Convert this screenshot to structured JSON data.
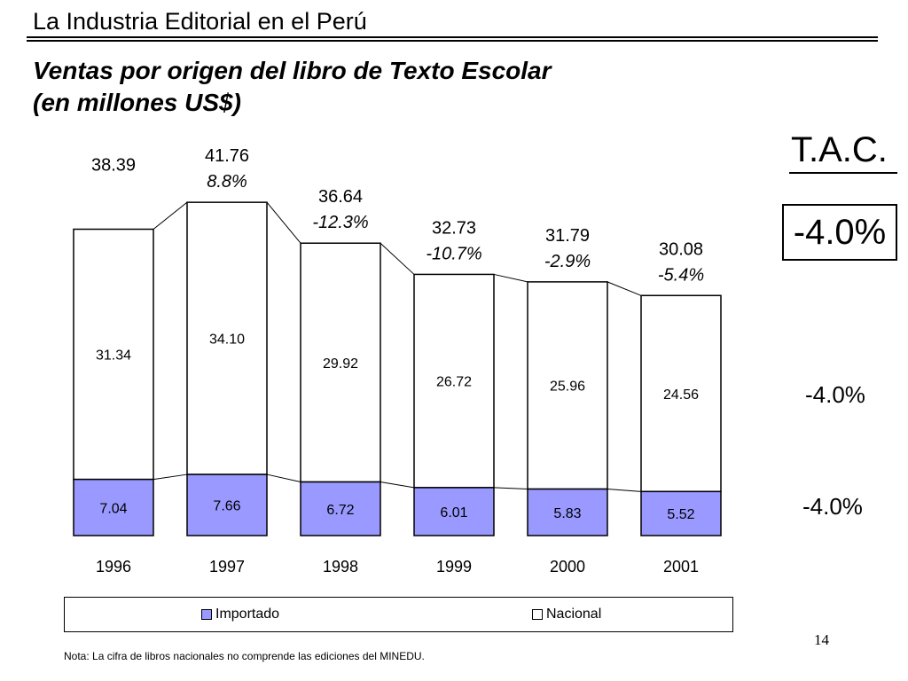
{
  "header": {
    "title": "La Industria Editorial en el Perú"
  },
  "chart_data": {
    "type": "bar",
    "stacked": true,
    "title_lines": [
      "Ventas por origen del libro de Texto Escolar",
      "(en millones US$)"
    ],
    "categories": [
      "1996",
      "1997",
      "1998",
      "1999",
      "2000",
      "2001"
    ],
    "series": [
      {
        "name": "Importado",
        "values": [
          "7.04",
          "7.66",
          "6.72",
          "6.01",
          "5.83",
          "5.52"
        ],
        "color": "#9999ff"
      },
      {
        "name": "Nacional",
        "values": [
          "31.34",
          "34.10",
          "29.92",
          "26.72",
          "25.96",
          "24.56"
        ],
        "color": "#ffffff"
      }
    ],
    "totals": [
      "38.39",
      "41.76",
      "36.64",
      "32.73",
      "31.79",
      "30.08"
    ],
    "growth": [
      "",
      "8.8%",
      "-12.3%",
      "-10.7%",
      "-2.9%",
      "-5.4%"
    ],
    "legend_position": "bottom",
    "grid": false
  },
  "tac": {
    "title": "T.A.C.",
    "total": "-4.0%",
    "nacional": "-4.0%",
    "importado": "-4.0%"
  },
  "note": "Nota: La cifra de libros nacionales no comprende las ediciones del MINEDU.",
  "page_number": "14"
}
